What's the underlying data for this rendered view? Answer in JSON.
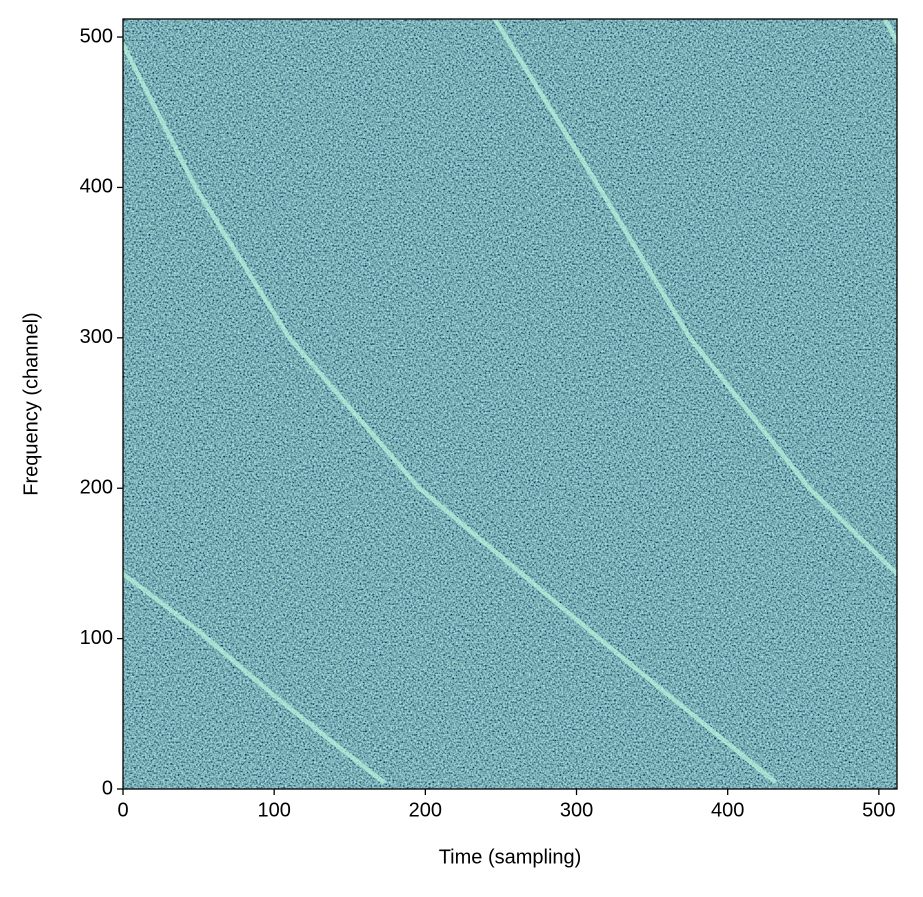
{
  "chart_data": {
    "type": "heatmap",
    "xlabel": "Time (sampling)",
    "ylabel": "Frequency (channel)",
    "xlim": [
      0,
      512
    ],
    "ylim": [
      0,
      512
    ],
    "xticks": [
      0,
      100,
      200,
      300,
      400,
      500
    ],
    "yticks": [
      0,
      100,
      200,
      300,
      400,
      500
    ],
    "series": [
      {
        "color": "#b8f2dc",
        "x": [
          0,
          50,
          100,
          140,
          172
        ],
        "values": [
          143,
          105,
          62,
          30,
          5
        ]
      },
      {
        "color": "#b8f2dc",
        "x": [
          0,
          48,
          110,
          196,
          315,
          431
        ],
        "values": [
          495,
          400,
          300,
          200,
          100,
          5
        ]
      },
      {
        "color": "#b8f2dc",
        "x": [
          246,
          315,
          375,
          454,
          512
        ],
        "values": [
          512,
          400,
          300,
          200,
          143
        ]
      },
      {
        "color": "#b8f2dc",
        "x": [
          504,
          512
        ],
        "values": [
          512,
          497
        ]
      }
    ]
  }
}
